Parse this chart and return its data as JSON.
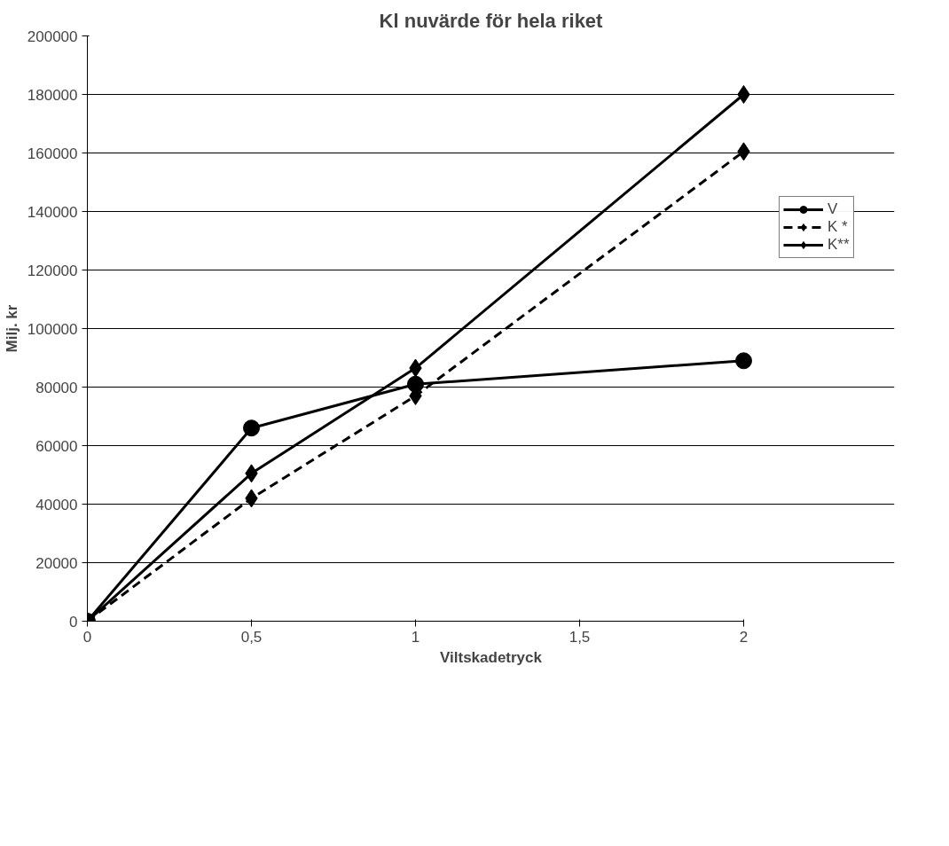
{
  "chart_data": {
    "type": "line",
    "title": "Kl nuvärde för hela riket",
    "xlabel": "Viltskadetryck",
    "ylabel": "Milj. kr",
    "x": [
      0,
      0.5,
      1,
      2
    ],
    "series": [
      {
        "name": "V",
        "color": "#000000",
        "marker": "circle",
        "line_style": "solid",
        "values": [
          0,
          66000,
          81000,
          89000
        ]
      },
      {
        "name": "K *",
        "color": "#000000",
        "marker": "diamond",
        "line_style": "dashed",
        "values": [
          0,
          42000,
          77000,
          160500
        ]
      },
      {
        "name": "K**",
        "color": "#000000",
        "marker": "diamond",
        "line_style": "solid",
        "values": [
          0,
          50500,
          86500,
          180000
        ]
      }
    ],
    "xlim": [
      0,
      2
    ],
    "xticks": [
      0,
      {
        "value": 0.5,
        "label": "0,5"
      },
      1,
      {
        "value": 1.5,
        "label": "1,5"
      },
      2
    ],
    "ylim": [
      0,
      200000
    ],
    "yticks": [
      0,
      20000,
      40000,
      60000,
      80000,
      100000,
      120000,
      140000,
      160000,
      180000,
      200000
    ],
    "grid": "y",
    "legend": "right"
  }
}
